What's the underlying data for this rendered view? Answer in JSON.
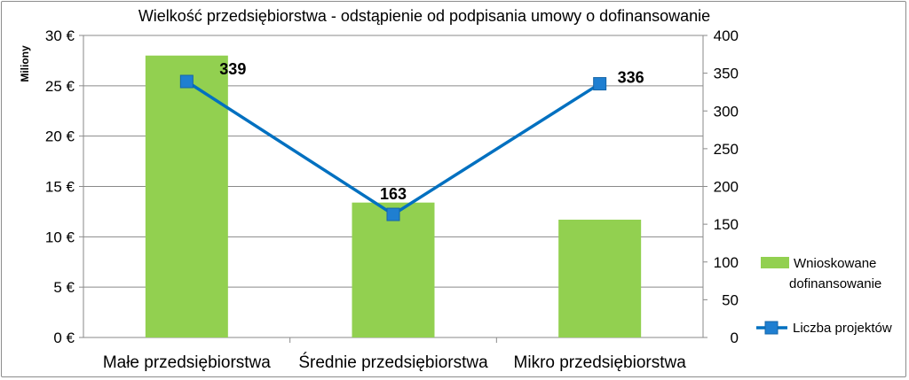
{
  "chart_data": {
    "type": "bar+line",
    "title": "Wielkość przedsiębiorstwa - odstąpienie od podpisania umowy o dofinansowanie",
    "ylabel": "Miliony",
    "categories": [
      "Małe przedsiębiorstwa",
      "Średnie przedsiębiorstwa",
      "Mikro przedsiębiorstwa"
    ],
    "left_axis": {
      "ylim": [
        0,
        30
      ],
      "ticks": [
        "0 €",
        "5 €",
        "10 €",
        "15 €",
        "20 €",
        "25 €",
        "30 €"
      ],
      "tick_values": [
        0,
        5,
        10,
        15,
        20,
        25,
        30
      ]
    },
    "right_axis": {
      "ylim": [
        0,
        400
      ],
      "ticks": [
        "0",
        "50",
        "100",
        "150",
        "200",
        "250",
        "300",
        "350",
        "400"
      ],
      "tick_values": [
        0,
        50,
        100,
        150,
        200,
        250,
        300,
        350,
        400
      ]
    },
    "series": [
      {
        "name_lines": [
          "Wnioskowane",
          "dofinansowanie"
        ],
        "type": "bar",
        "axis": "left",
        "color": "#92d050",
        "values": [
          28.0,
          13.4,
          11.7
        ]
      },
      {
        "name": "Liczba projektów",
        "type": "line",
        "axis": "right",
        "color": "#0070c0",
        "marker_color": "#1f7fd1",
        "values": [
          339,
          163,
          336
        ],
        "data_labels": [
          "339",
          "163",
          "336"
        ]
      }
    ],
    "grid": true,
    "legend_position": "right"
  }
}
